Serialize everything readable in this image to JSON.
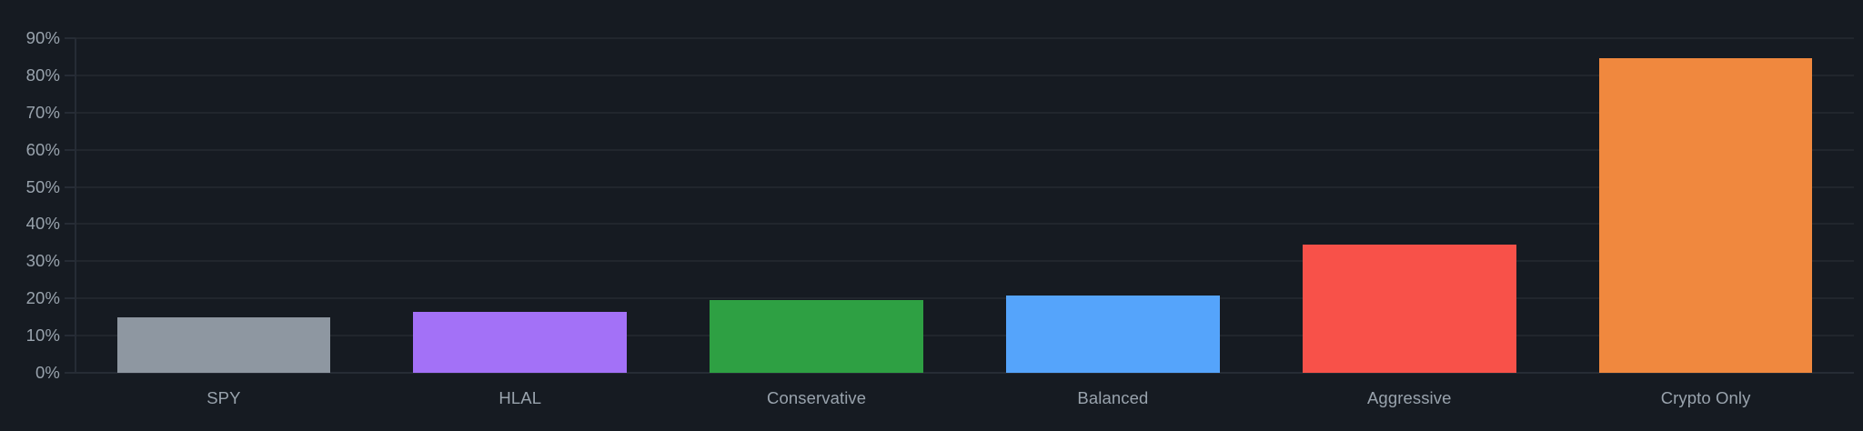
{
  "chart_data": {
    "type": "bar",
    "title": "",
    "categories": [
      "SPY",
      "HLAL",
      "Conservative",
      "Balanced",
      "Aggressive",
      "Crypto Only"
    ],
    "values": [
      15.0,
      16.5,
      19.6,
      20.9,
      34.5,
      84.6
    ],
    "value_unit": "%",
    "bar_colors": [
      "#8e97a1",
      "#a371f7",
      "#2ea043",
      "#55a4fb",
      "#f85149",
      "#f0883e"
    ],
    "y_axis": {
      "tick_labels": [
        "0%",
        "10%",
        "20%",
        "30%",
        "40%",
        "50%",
        "60%",
        "70%",
        "80%",
        "90%"
      ],
      "tick_values": [
        0,
        10,
        20,
        30,
        40,
        50,
        60,
        70,
        80,
        90
      ]
    },
    "xlabel": "",
    "ylabel": "",
    "ylim": [
      0,
      90
    ],
    "grid": true,
    "legend_position": "none"
  },
  "theme": {
    "background_color": "#161b22",
    "grid_color": "#21262d",
    "axis_border_color": "#262c35",
    "tick_label_color": "#99a3ad"
  }
}
